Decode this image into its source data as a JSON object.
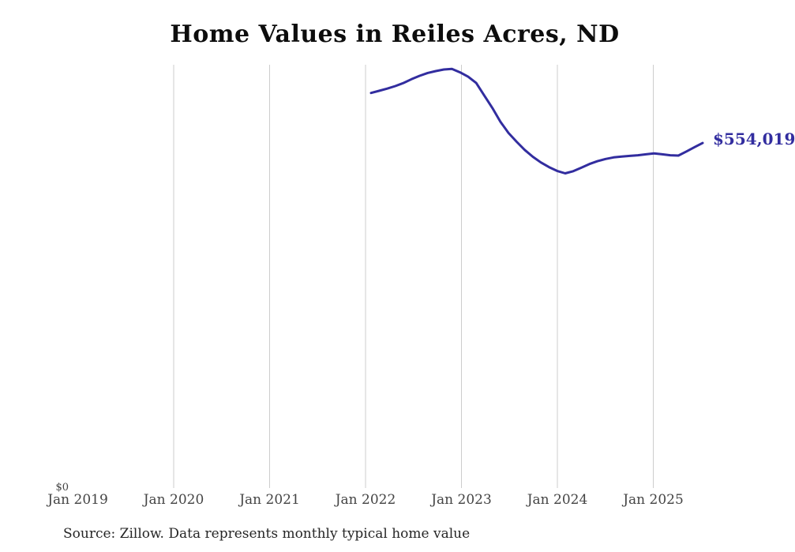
{
  "title": "Home Values in Reiles Acres, ND",
  "source_note": "Source: Zillow. Data represents monthly typical home value",
  "end_label": "$554,019",
  "y_zero_label": "$0",
  "colors": {
    "line": "#322d9f",
    "end_label": "#322d9f",
    "gridline": "#cdcdcd",
    "tick_label": "#444444",
    "title": "#0d0d0d",
    "source": "#262626",
    "background": "#ffffff"
  },
  "chart_data": {
    "type": "line",
    "title": "Home Values in Reiles Acres, ND",
    "series_name": "Monthly typical home value ($)",
    "x_tick_labels": [
      "Jan 2019",
      "Jan 2020",
      "Jan 2021",
      "Jan 2022",
      "Jan 2023",
      "Jan 2024",
      "Jan 2025"
    ],
    "grid": "vertical-only",
    "legend": "none",
    "xlabel": "",
    "ylabel": "",
    "ylim": [
      0,
      680000
    ],
    "y_axis_labels_shown": [
      "$0"
    ],
    "last_point_label": "$554,019",
    "x": [
      "Feb 2022",
      "Mar 2022",
      "Apr 2022",
      "May 2022",
      "Jun 2022",
      "Jul 2022",
      "Aug 2022",
      "Sep 2022",
      "Oct 2022",
      "Nov 2022",
      "Dec 2022",
      "Jan 2023",
      "Feb 2023",
      "Mar 2023",
      "Apr 2023",
      "May 2023",
      "Jun 2023",
      "Jul 2023",
      "Aug 2023",
      "Sep 2023",
      "Oct 2023",
      "Nov 2023",
      "Dec 2023",
      "Jan 2024",
      "Feb 2024",
      "Mar 2024",
      "Apr 2024",
      "May 2024",
      "Jun 2024",
      "Jul 2024",
      "Aug 2024",
      "Sep 2024",
      "Oct 2024",
      "Nov 2024",
      "Dec 2024",
      "Jan 2025",
      "Feb 2025",
      "Mar 2025",
      "Apr 2025",
      "May 2025",
      "Jun 2025",
      "Jul 2025"
    ],
    "values": [
      634000,
      637500,
      641000,
      645000,
      650000,
      656000,
      661500,
      666000,
      669000,
      671500,
      672500,
      667000,
      660000,
      650000,
      630000,
      610000,
      588000,
      570000,
      556000,
      543000,
      532000,
      523000,
      515500,
      509500,
      505500,
      509000,
      514500,
      520500,
      525000,
      528500,
      531000,
      532500,
      533500,
      534500,
      536000,
      537500,
      536000,
      534500,
      534000,
      540500,
      547500,
      554019
    ]
  }
}
